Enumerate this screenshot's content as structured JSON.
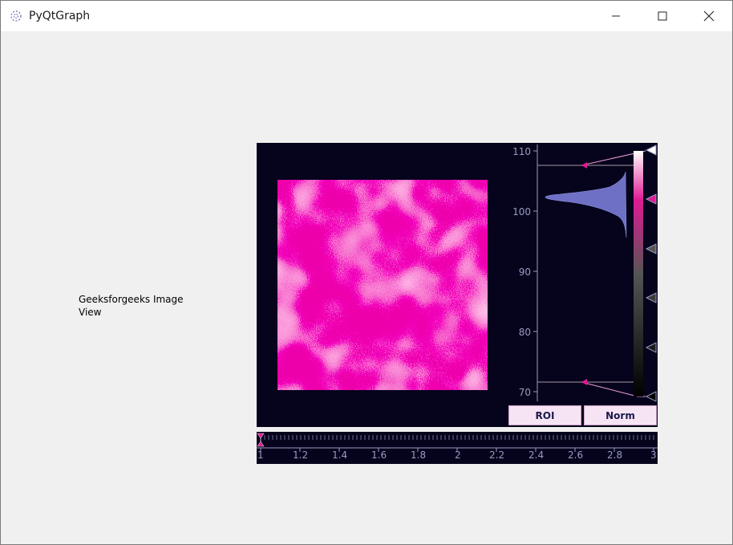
{
  "window": {
    "title": "PyQtGraph",
    "controls": {
      "minimize_icon": "minimize-icon",
      "maximize_icon": "maximize-icon",
      "close_icon": "close-icon"
    }
  },
  "side_label": "Geeksforgeeks Image View",
  "histogram": {
    "axis_ticks": [
      "110",
      "100",
      "90",
      "80",
      "70"
    ],
    "colormap_colors": [
      "#ffffff",
      "#e01a94",
      "#555555",
      "#000000"
    ]
  },
  "buttons": {
    "roi": "ROI",
    "norm": "Norm"
  },
  "timeline": {
    "ticks": [
      "1",
      "1.2",
      "1.4",
      "1.6",
      "1.8",
      "2",
      "2.2",
      "2.4",
      "2.6",
      "2.8",
      "3"
    ],
    "current": "1"
  },
  "colors": {
    "background": "#05041c",
    "accent": "#e01a94",
    "axis": "#9a9ac4",
    "histogram_fill": "#6e70c6"
  }
}
